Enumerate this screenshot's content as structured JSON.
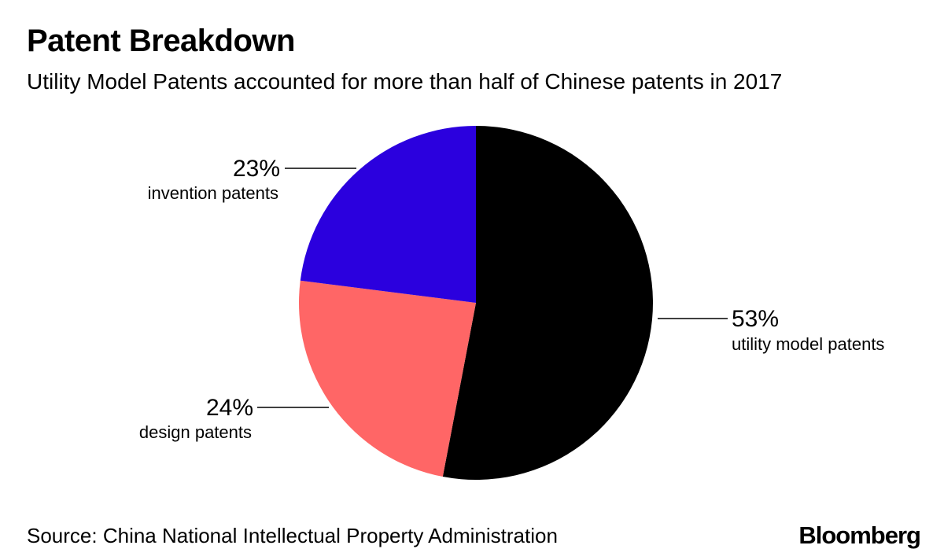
{
  "title": "Patent Breakdown",
  "subtitle": "Utility Model Patents accounted for more than half of Chinese patents in 2017",
  "source": "Source: China National Intellectual Property Administration",
  "logo": "Bloomberg",
  "chart_data": {
    "type": "pie",
    "title": "Patent Breakdown",
    "subtitle": "Utility Model Patents accounted for more than half of Chinese patents in 2017",
    "slices": [
      {
        "label": "utility model patents",
        "value": 53,
        "value_label": "53%",
        "color": "#000000"
      },
      {
        "label": "design patents",
        "value": 24,
        "value_label": "24%",
        "color": "#ff6666"
      },
      {
        "label": "invention patents",
        "value": 23,
        "value_label": "23%",
        "color": "#2b00de"
      }
    ],
    "start_angle": "12 o'clock",
    "direction": "clockwise",
    "legend": "direct labels with leader lines"
  }
}
